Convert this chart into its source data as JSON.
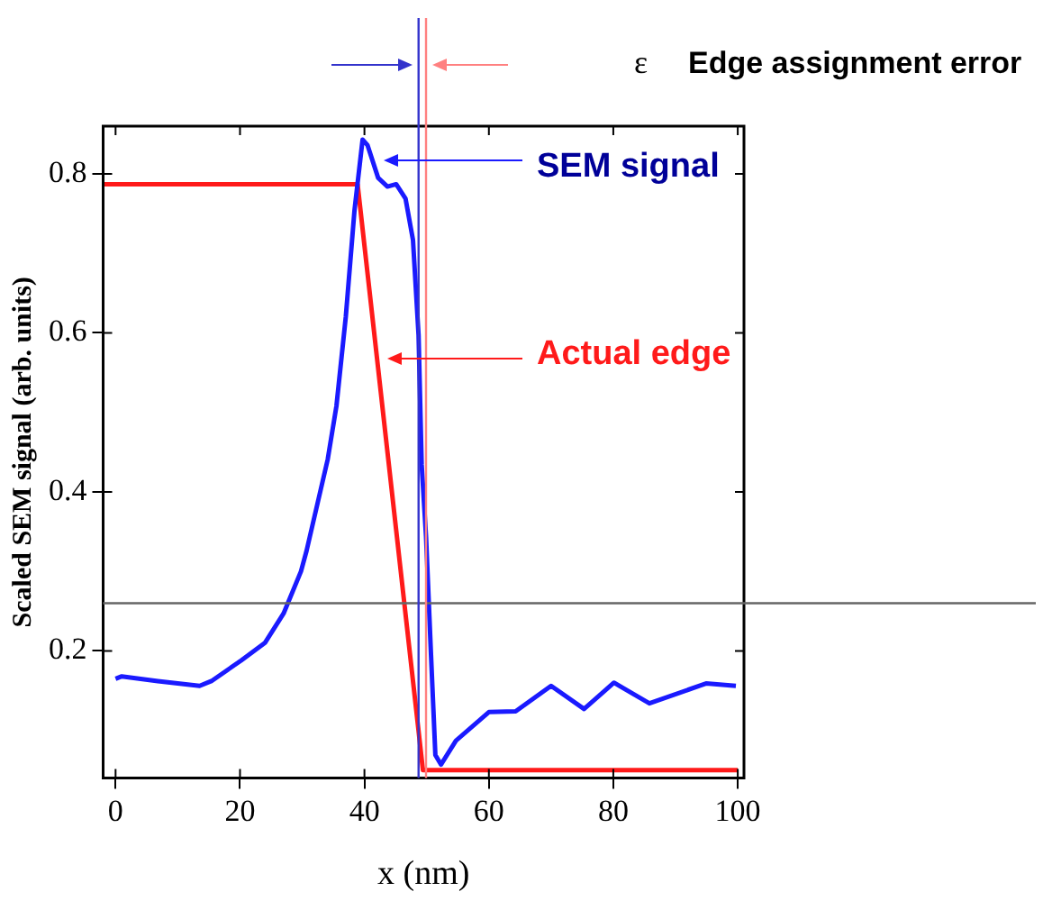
{
  "chart_data": {
    "type": "line",
    "xlabel": "x (nm)",
    "ylabel": "Scaled SEM signal (arb. units)",
    "xlim": [
      -2,
      101
    ],
    "ylim": [
      0.04,
      0.86
    ],
    "xticks": [
      0,
      20,
      40,
      60,
      80,
      100
    ],
    "yticks": [
      0.2,
      0.4,
      0.6,
      0.8
    ],
    "grid": false,
    "legend": false,
    "marker": "none",
    "line_style": "solid",
    "series": [
      {
        "color": "#1a1aff",
        "x": [
          0,
          1,
          6.8,
          13.5,
          15.4,
          20.2,
          24,
          27,
          29.8,
          30.7,
          34.1,
          35.5,
          37,
          38.4,
          39.7,
          40.5,
          42.2,
          43.7,
          45.1,
          46.6,
          47.8,
          48.7,
          49.2,
          49.9,
          50.7,
          51.4,
          52.3,
          54.7,
          60,
          64.3,
          70,
          75.3,
          80.1,
          85.8,
          94.9,
          99.7
        ],
        "values": [
          0.165,
          0.168,
          0.162,
          0.156,
          0.162,
          0.188,
          0.21,
          0.247,
          0.3,
          0.326,
          0.441,
          0.508,
          0.62,
          0.754,
          0.843,
          0.836,
          0.795,
          0.784,
          0.787,
          0.769,
          0.717,
          0.597,
          0.434,
          0.344,
          0.195,
          0.069,
          0.057,
          0.087,
          0.123,
          0.124,
          0.156,
          0.127,
          0.16,
          0.134,
          0.159,
          0.156
        ]
      },
      {
        "color": "#ff1a1a",
        "x": [
          -2,
          38.9,
          49.4,
          100
        ],
        "values": [
          0.787,
          0.787,
          0.05,
          0.05
        ]
      }
    ],
    "ref_lines": [
      {
        "axis": "y",
        "value": 0.26,
        "color": "#666666"
      },
      {
        "axis": "x",
        "value": 48.7,
        "color": "#3333cc"
      },
      {
        "axis": "x",
        "value": 49.9,
        "color": "#ff8080"
      }
    ],
    "annotations": [
      "SEM signal",
      "Actual edge",
      "ε",
      "Edge assignment error"
    ]
  }
}
